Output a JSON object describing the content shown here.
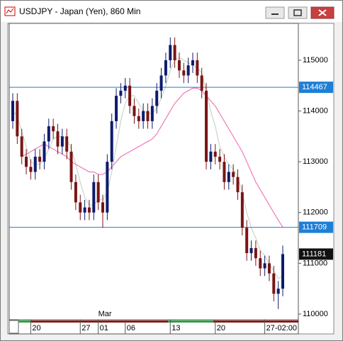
{
  "window": {
    "title": "USDJPY - Japan (Yen), 860 Min"
  },
  "chart_data": {
    "type": "candlestick",
    "ylim": [
      109888,
      115726
    ],
    "yticks": [
      110000,
      111000,
      112000,
      113000,
      114000,
      115000
    ],
    "categories": [
      null,
      null,
      null,
      null,
      "20",
      null,
      null,
      null,
      null,
      null,
      null,
      null,
      null,
      null,
      null,
      "27",
      null,
      null,
      null,
      "01",
      null,
      null,
      null,
      null,
      null,
      "06",
      null,
      null,
      null,
      null,
      null,
      null,
      null,
      null,
      null,
      "13",
      null,
      null,
      null,
      null,
      null,
      null,
      null,
      null,
      null,
      "20",
      null,
      null,
      null,
      null,
      null,
      null,
      null,
      null,
      null,
      null,
      "27-02:00",
      null,
      null,
      null,
      null
    ],
    "month_label": "Mar",
    "up_color": "#0d1b6e",
    "down_color": "#7a1414",
    "open": [
      113800,
      114200,
      113500,
      113100,
      112900,
      112800,
      113100,
      113000,
      113400,
      113700,
      113600,
      113300,
      113500,
      113200,
      112600,
      112200,
      112000,
      112100,
      112000,
      112600,
      112200,
      112000,
      113000,
      113800,
      114300,
      114400,
      114500,
      114100,
      113900,
      113800,
      114000,
      113800,
      114100,
      114400,
      114700,
      115000,
      115300,
      115000,
      114800,
      114700,
      114900,
      115000,
      114700,
      114400,
      113000,
      113200,
      113100,
      113000,
      112600,
      112800,
      112700,
      112400,
      111700,
      111200,
      111300,
      111100,
      110900,
      111000,
      110800,
      110400,
      110500
    ],
    "high": [
      114350,
      114350,
      113650,
      113250,
      113050,
      113250,
      113250,
      113550,
      113850,
      113850,
      113750,
      113650,
      113650,
      113350,
      112750,
      112350,
      112250,
      112250,
      112750,
      112750,
      112350,
      113150,
      113950,
      114450,
      114550,
      114650,
      114650,
      114250,
      114050,
      114150,
      114150,
      114250,
      114550,
      114850,
      115150,
      115450,
      115450,
      115150,
      114950,
      115050,
      115150,
      115150,
      114850,
      114550,
      113350,
      113350,
      113250,
      113150,
      112950,
      112950,
      112850,
      112550,
      111850,
      111450,
      111450,
      111250,
      111150,
      111150,
      110950,
      110650,
      111350
    ],
    "low": [
      113650,
      113350,
      112950,
      112750,
      112650,
      112650,
      112850,
      112850,
      113250,
      113450,
      113150,
      113150,
      113050,
      112450,
      112050,
      111850,
      111850,
      111850,
      111850,
      112050,
      111700,
      111850,
      112850,
      113650,
      114150,
      114250,
      113950,
      113750,
      113650,
      113650,
      113650,
      113650,
      113950,
      114250,
      114550,
      114850,
      114850,
      114650,
      114550,
      114550,
      114750,
      114550,
      114250,
      112850,
      112850,
      112950,
      112850,
      112450,
      112450,
      112550,
      112250,
      111550,
      111050,
      111050,
      110950,
      110750,
      110750,
      110650,
      110250,
      110100,
      110350
    ],
    "close": [
      114200,
      113500,
      113100,
      112900,
      112800,
      113100,
      113000,
      113400,
      113700,
      113600,
      113300,
      113500,
      113200,
      112600,
      112200,
      112000,
      112100,
      112000,
      112600,
      112200,
      112000,
      113000,
      113800,
      114300,
      114400,
      114500,
      114100,
      113900,
      113800,
      114000,
      113800,
      114100,
      114400,
      114700,
      115000,
      115300,
      115000,
      114800,
      114700,
      114900,
      115000,
      114700,
      114400,
      113000,
      113200,
      113100,
      113000,
      112600,
      112800,
      112700,
      112400,
      111700,
      111200,
      111300,
      111100,
      110900,
      111000,
      110800,
      110400,
      110500,
      111181
    ],
    "series": [
      {
        "color": "#c8d8c4",
        "values": [
          114000,
          113900,
          113600,
          113300,
          113000,
          112950,
          112950,
          113050,
          113250,
          113450,
          113500,
          113500,
          113450,
          113250,
          112950,
          112600,
          112300,
          112150,
          112150,
          112250,
          112250,
          112400,
          112800,
          113300,
          113800,
          114150,
          114300,
          114300,
          114150,
          114000,
          113950,
          113950,
          114050,
          114250,
          114500,
          114800,
          115000,
          115050,
          115000,
          114950,
          114900,
          114850,
          114750,
          114400,
          114000,
          113700,
          113300,
          113100,
          112950,
          112850,
          112700,
          112400,
          112000,
          111700,
          111500,
          111250,
          111150,
          111000,
          110850,
          110700,
          110750
        ]
      },
      {
        "color": "#f07ab8",
        "values": [
          null,
          null,
          113100,
          113150,
          113200,
          113250,
          113300,
          113350,
          113300,
          113250,
          113200,
          113150,
          113100,
          113000,
          112950,
          112900,
          112850,
          112800,
          112800,
          112750,
          112750,
          112800,
          112900,
          113000,
          113100,
          113150,
          113200,
          113250,
          113300,
          113350,
          113400,
          113450,
          113550,
          113700,
          113850,
          114000,
          114150,
          114250,
          114350,
          114400,
          114450,
          114450,
          114400,
          114300,
          114200,
          114100,
          113950,
          113800,
          113650,
          113500,
          113350,
          113200,
          113000,
          112800,
          112600,
          112450,
          112300,
          112150,
          112000,
          111850,
          111709
        ]
      }
    ],
    "hlines": [
      {
        "value": 114467,
        "color": "#1e7fd6"
      },
      {
        "value": 111709,
        "color": "#1e7fd6"
      }
    ],
    "last_price": {
      "value": 111181,
      "color": "#111111"
    }
  }
}
